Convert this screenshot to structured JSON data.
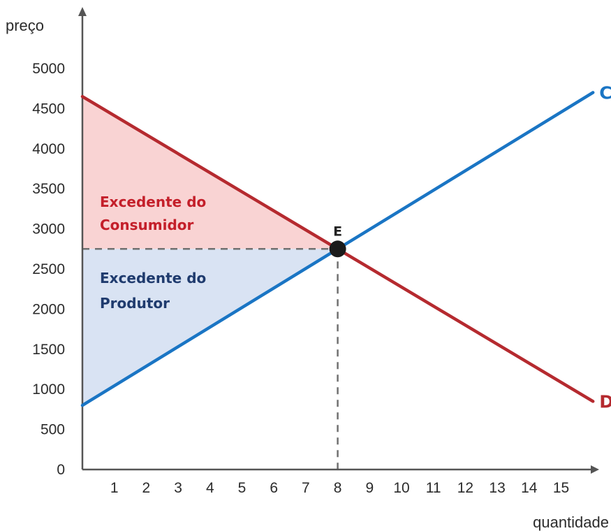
{
  "chart_data": {
    "type": "line",
    "xlabel": "quantidade",
    "ylabel": "preço",
    "x_ticks": [
      1,
      2,
      3,
      4,
      5,
      6,
      7,
      8,
      9,
      10,
      11,
      12,
      13,
      14,
      15
    ],
    "y_ticks": [
      0,
      500,
      1000,
      1500,
      2000,
      2500,
      3000,
      3500,
      4000,
      4500,
      5000
    ],
    "xlim": [
      0,
      16
    ],
    "ylim": [
      0,
      5000
    ],
    "series": [
      {
        "name": "C",
        "color": "#1a75c4",
        "x": [
          0,
          16
        ],
        "y": [
          800,
          4700
        ]
      },
      {
        "name": "D",
        "color": "#b52a2f",
        "x": [
          0,
          16
        ],
        "y": [
          4650,
          850
        ]
      }
    ],
    "equilibrium": {
      "label": "E",
      "x": 8,
      "y": 2750
    },
    "regions": [
      {
        "label_lines": [
          "Excedente do",
          "Consumidor"
        ],
        "fill": "#f9d3d3",
        "text_color": "#c41f2a"
      },
      {
        "label_lines": [
          "Excedente do",
          "Produtor"
        ],
        "fill": "#d9e3f3",
        "text_color": "#1f3b6e"
      }
    ],
    "axis_color": "#555555",
    "guide_color": "#707070"
  }
}
